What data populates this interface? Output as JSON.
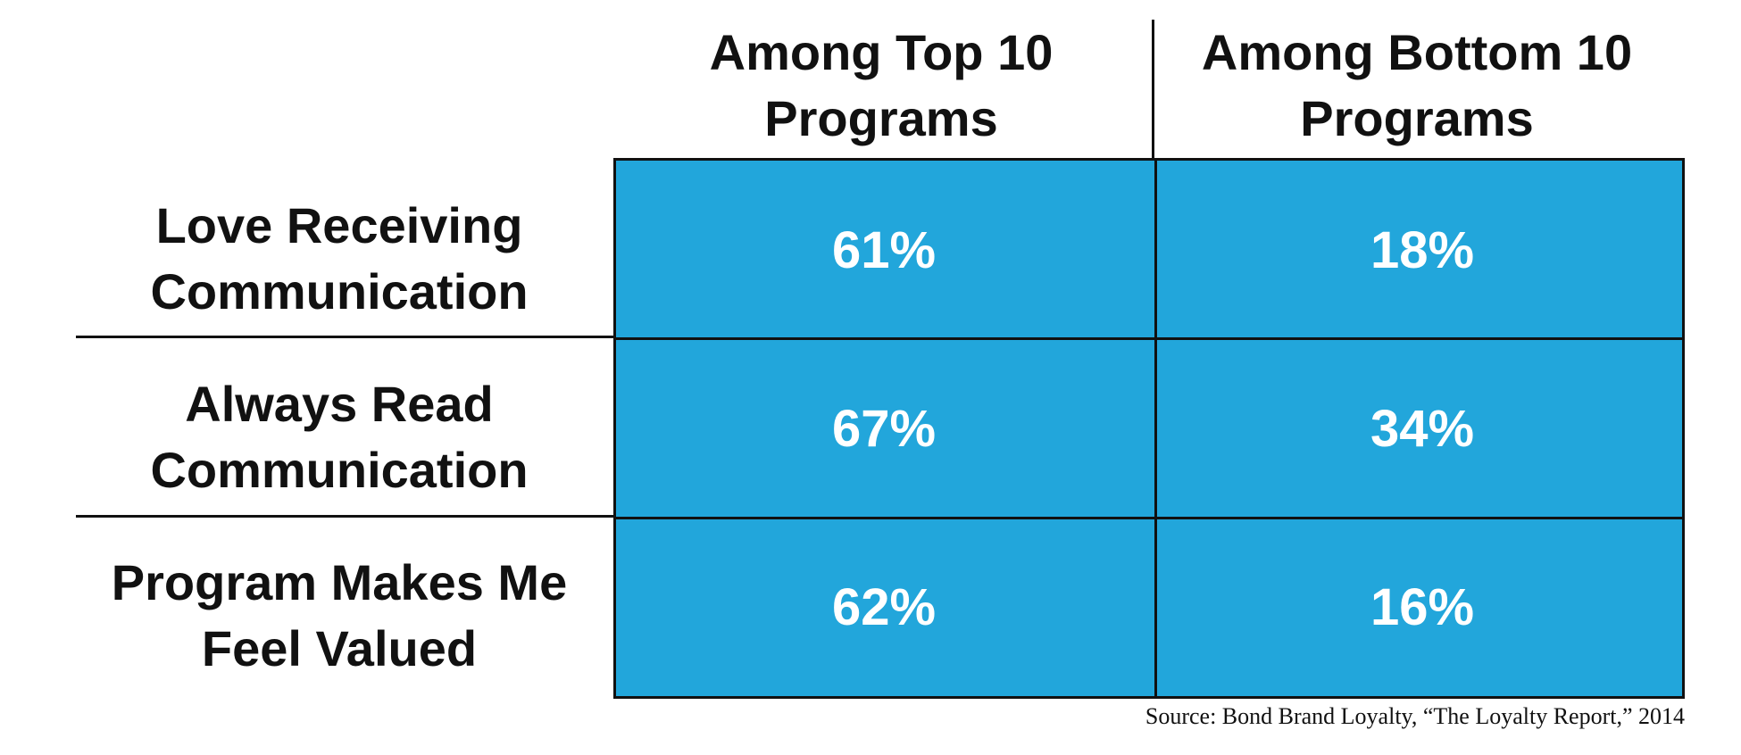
{
  "chart_data": {
    "type": "table",
    "columns": [
      {
        "lines": [
          "Among Top 10",
          "Programs"
        ]
      },
      {
        "lines": [
          "Among Bottom 10",
          "Programs"
        ]
      }
    ],
    "rows": [
      {
        "lines": [
          "Love Receiving",
          "Communication"
        ],
        "values": [
          "61%",
          "18%"
        ]
      },
      {
        "lines": [
          "Always Read",
          "Communication"
        ],
        "values": [
          "67%",
          "34%"
        ]
      },
      {
        "lines": [
          "Program Makes Me",
          "Feel Valued"
        ],
        "values": [
          "62%",
          "16%"
        ]
      }
    ],
    "source": "Source: Bond Brand Loyalty, “The Loyalty Report,” 2014"
  },
  "colors": {
    "cell_fill": "#22a6db",
    "cell_text": "#ffffff",
    "border": "#111111"
  }
}
